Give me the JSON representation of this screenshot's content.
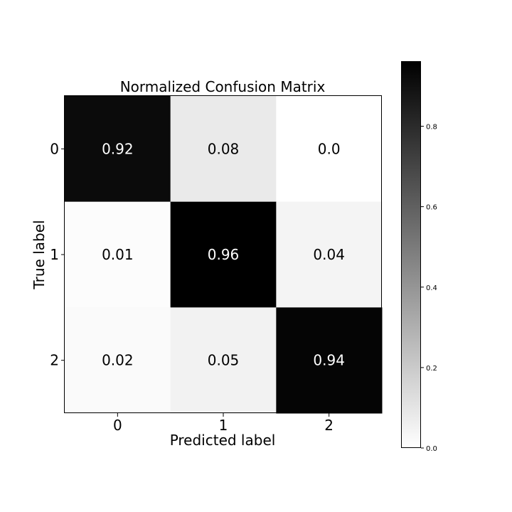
{
  "chart_data": {
    "type": "heatmap",
    "title": "Normalized Confusion Matrix",
    "xlabel": "Predicted label",
    "ylabel": "True label",
    "x_categories": [
      "0",
      "1",
      "2"
    ],
    "y_categories": [
      "0",
      "1",
      "2"
    ],
    "values": [
      [
        0.92,
        0.08,
        0.0
      ],
      [
        0.01,
        0.96,
        0.04
      ],
      [
        0.02,
        0.05,
        0.94
      ]
    ],
    "cell_labels": [
      [
        "0.92",
        "0.08",
        "0.0"
      ],
      [
        "0.01",
        "0.96",
        "0.04"
      ],
      [
        "0.02",
        "0.05",
        "0.94"
      ]
    ],
    "colormap": "greys",
    "color_range": [
      0.0,
      0.96
    ],
    "colorbar": {
      "ticks": [
        0.0,
        0.2,
        0.4,
        0.6,
        0.8
      ],
      "tick_labels": [
        "0.0",
        "0.2",
        "0.4",
        "0.6",
        "0.8"
      ]
    },
    "grid": false
  },
  "colors": {
    "low": "#ffffff",
    "high": "#000000",
    "text_on_dark": "#ffffff",
    "text_on_light": "#000000"
  }
}
